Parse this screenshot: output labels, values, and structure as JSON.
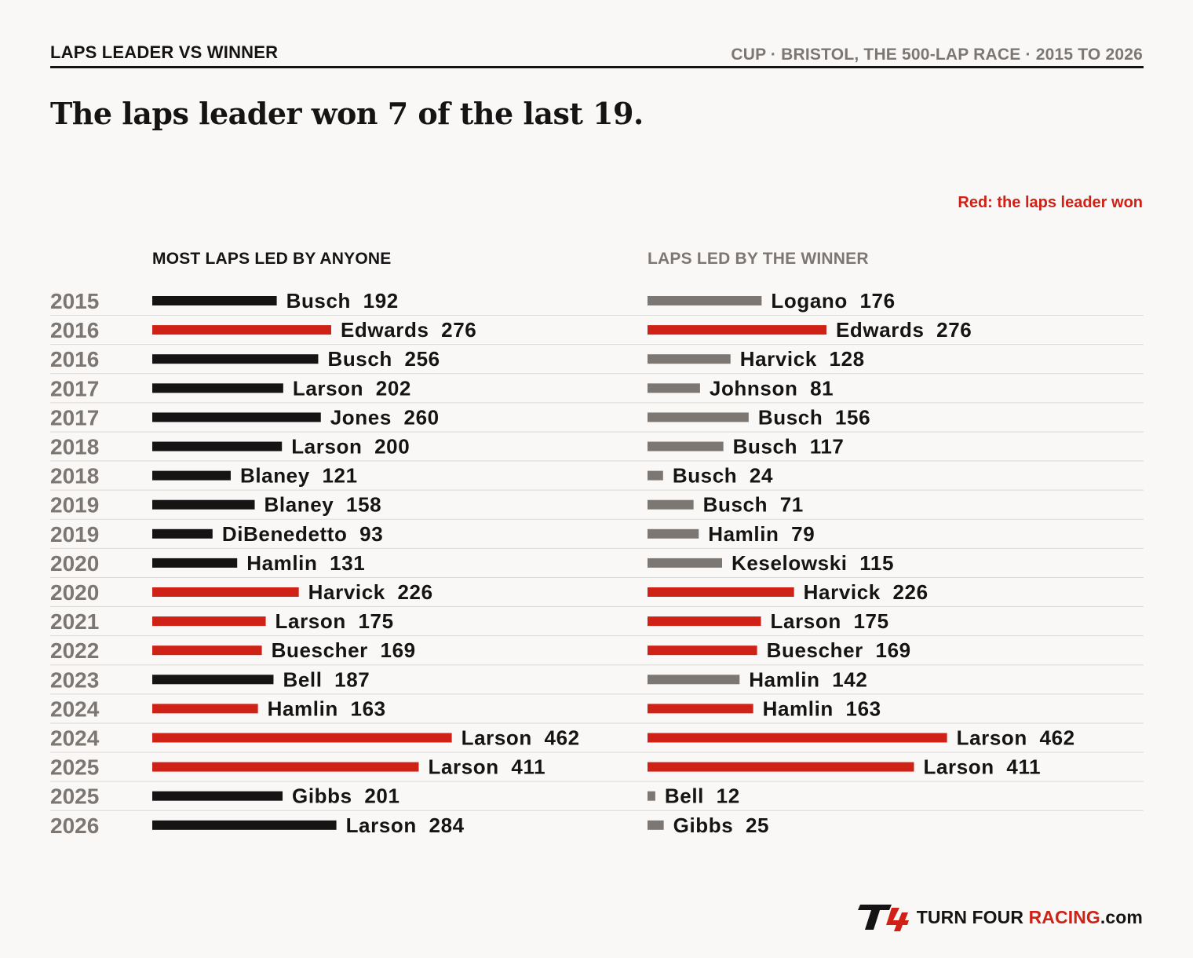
{
  "header": {
    "kicker": "LAPS LEADER VS WINNER",
    "meta": "CUP · BRISTOL, THE 500-LAP RACE · 2015 TO 2026",
    "headline": "The laps leader won 7 of the last 19.",
    "legend_note": "Red: the laps leader won"
  },
  "colors": {
    "leader_won": "#cf2115",
    "leader_lost": "#151313",
    "winner_not_leader": "#7d7773",
    "year_text": "#7d7773",
    "divider": "#dcd9d5"
  },
  "chart_data": {
    "type": "bar",
    "orientation": "horizontal",
    "grid": false,
    "panels": [
      {
        "key": "leader",
        "title": "MOST LAPS LED BY ANYONE"
      },
      {
        "key": "winner",
        "title": "LAPS LED BY THE WINNER"
      }
    ],
    "rows": [
      {
        "year": "2015",
        "leader_name": "Busch",
        "leader_laps": 192,
        "winner_name": "Logano",
        "winner_laps": 176,
        "leader_won": false
      },
      {
        "year": "2016",
        "leader_name": "Edwards",
        "leader_laps": 276,
        "winner_name": "Edwards",
        "winner_laps": 276,
        "leader_won": true
      },
      {
        "year": "2016",
        "leader_name": "Busch",
        "leader_laps": 256,
        "winner_name": "Harvick",
        "winner_laps": 128,
        "leader_won": false
      },
      {
        "year": "2017",
        "leader_name": "Larson",
        "leader_laps": 202,
        "winner_name": "Johnson",
        "winner_laps": 81,
        "leader_won": false
      },
      {
        "year": "2017",
        "leader_name": "Jones",
        "leader_laps": 260,
        "winner_name": "Busch",
        "winner_laps": 156,
        "leader_won": false
      },
      {
        "year": "2018",
        "leader_name": "Larson",
        "leader_laps": 200,
        "winner_name": "Busch",
        "winner_laps": 117,
        "leader_won": false
      },
      {
        "year": "2018",
        "leader_name": "Blaney",
        "leader_laps": 121,
        "winner_name": "Busch",
        "winner_laps": 24,
        "leader_won": false
      },
      {
        "year": "2019",
        "leader_name": "Blaney",
        "leader_laps": 158,
        "winner_name": "Busch",
        "winner_laps": 71,
        "leader_won": false
      },
      {
        "year": "2019",
        "leader_name": "DiBenedetto",
        "leader_laps": 93,
        "winner_name": "Hamlin",
        "winner_laps": 79,
        "leader_won": false
      },
      {
        "year": "2020",
        "leader_name": "Hamlin",
        "leader_laps": 131,
        "winner_name": "Keselowski",
        "winner_laps": 115,
        "leader_won": false
      },
      {
        "year": "2020",
        "leader_name": "Harvick",
        "leader_laps": 226,
        "winner_name": "Harvick",
        "winner_laps": 226,
        "leader_won": true
      },
      {
        "year": "2021",
        "leader_name": "Larson",
        "leader_laps": 175,
        "winner_name": "Larson",
        "winner_laps": 175,
        "leader_won": true
      },
      {
        "year": "2022",
        "leader_name": "Buescher",
        "leader_laps": 169,
        "winner_name": "Buescher",
        "winner_laps": 169,
        "leader_won": true
      },
      {
        "year": "2023",
        "leader_name": "Bell",
        "leader_laps": 187,
        "winner_name": "Hamlin",
        "winner_laps": 142,
        "leader_won": false
      },
      {
        "year": "2024",
        "leader_name": "Hamlin",
        "leader_laps": 163,
        "winner_name": "Hamlin",
        "winner_laps": 163,
        "leader_won": true
      },
      {
        "year": "2024",
        "leader_name": "Larson",
        "leader_laps": 462,
        "winner_name": "Larson",
        "winner_laps": 462,
        "leader_won": true
      },
      {
        "year": "2025",
        "leader_name": "Larson",
        "leader_laps": 411,
        "winner_name": "Larson",
        "winner_laps": 411,
        "leader_won": true
      },
      {
        "year": "2025",
        "leader_name": "Gibbs",
        "leader_laps": 201,
        "winner_name": "Bell",
        "winner_laps": 12,
        "leader_won": false
      },
      {
        "year": "2026",
        "leader_name": "Larson",
        "leader_laps": 284,
        "winner_name": "Gibbs",
        "winner_laps": 25,
        "leader_won": false
      }
    ],
    "xlim": [
      0,
      500
    ]
  },
  "footer": {
    "logo_mark": "T4",
    "brand_part1": "TURN FOUR ",
    "brand_part2": "RACING",
    "brand_part3": ".com"
  }
}
